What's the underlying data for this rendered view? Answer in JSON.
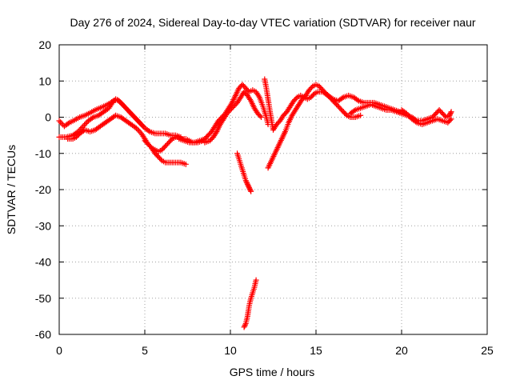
{
  "chart_data": {
    "type": "scatter",
    "title": "Day 276 of 2024, Sidereal Day-to-day VTEC variation (SDTVAR) for receiver naur",
    "xlabel": "GPS time / hours",
    "ylabel": "SDTVAR / TECUs",
    "xlim": [
      0,
      25
    ],
    "ylim": [
      -60,
      20
    ],
    "xticks": [
      0,
      5,
      10,
      15,
      20,
      25
    ],
    "yticks": [
      -60,
      -50,
      -40,
      -30,
      -20,
      -10,
      0,
      10,
      20
    ],
    "grid": true,
    "legend": "none",
    "marker": "+",
    "series_color": "#ff0000",
    "series": [
      {
        "name": "track-1",
        "points": [
          [
            0.0,
            -1.0
          ],
          [
            0.3,
            -2.5
          ],
          [
            0.6,
            -1.5
          ],
          [
            0.9,
            -0.8
          ],
          [
            1.2,
            0.0
          ],
          [
            1.5,
            0.5
          ],
          [
            1.8,
            1.2
          ],
          [
            2.1,
            2.0
          ],
          [
            2.4,
            2.6
          ],
          [
            2.7,
            3.2
          ],
          [
            3.0,
            4.0
          ],
          [
            3.2,
            4.6
          ],
          [
            3.4,
            4.8
          ],
          [
            3.6,
            4.0
          ],
          [
            3.8,
            3.0
          ],
          [
            4.0,
            2.0
          ],
          [
            4.2,
            1.0
          ],
          [
            4.4,
            0.0
          ],
          [
            4.6,
            -1.0
          ],
          [
            4.8,
            -2.0
          ],
          [
            5.0,
            -3.0
          ],
          [
            5.3,
            -4.0
          ],
          [
            5.6,
            -4.5
          ],
          [
            5.9,
            -4.5
          ],
          [
            6.2,
            -4.5
          ],
          [
            6.5,
            -5.0
          ],
          [
            6.8,
            -5.0
          ],
          [
            7.1,
            -5.5
          ]
        ]
      },
      {
        "name": "track-2",
        "points": [
          [
            0.0,
            -5.5
          ],
          [
            0.4,
            -5.5
          ],
          [
            0.8,
            -5.0
          ],
          [
            1.1,
            -4.0
          ],
          [
            1.4,
            -2.5
          ],
          [
            1.7,
            -1.0
          ],
          [
            2.0,
            0.0
          ],
          [
            2.3,
            0.5
          ],
          [
            2.6,
            1.5
          ],
          [
            2.9,
            2.5
          ],
          [
            3.1,
            4.0
          ],
          [
            3.3,
            5.0
          ],
          [
            3.5,
            4.5
          ],
          [
            3.7,
            3.5
          ],
          [
            3.9,
            2.5
          ],
          [
            4.1,
            1.5
          ],
          [
            4.3,
            0.5
          ],
          [
            4.5,
            -0.5
          ],
          [
            4.7,
            -1.5
          ],
          [
            4.9,
            -2.5
          ]
        ]
      },
      {
        "name": "track-3",
        "points": [
          [
            0.5,
            -6.0
          ],
          [
            0.8,
            -6.0
          ],
          [
            1.0,
            -5.5
          ],
          [
            1.2,
            -4.5
          ],
          [
            1.5,
            -3.5
          ],
          [
            1.8,
            -4.0
          ],
          [
            2.1,
            -3.5
          ],
          [
            2.4,
            -2.5
          ],
          [
            2.7,
            -1.5
          ],
          [
            3.0,
            -0.5
          ],
          [
            3.3,
            0.5
          ],
          [
            3.6,
            0.0
          ],
          [
            3.9,
            -1.0
          ],
          [
            4.2,
            -2.0
          ],
          [
            4.5,
            -3.0
          ],
          [
            4.8,
            -4.5
          ],
          [
            5.0,
            -6.0
          ],
          [
            5.2,
            -7.5
          ],
          [
            5.4,
            -8.5
          ],
          [
            5.6,
            -9.0
          ],
          [
            5.8,
            -9.5
          ],
          [
            6.0,
            -9.0
          ],
          [
            6.2,
            -8.0
          ],
          [
            6.4,
            -7.0
          ],
          [
            6.6,
            -6.0
          ],
          [
            6.8,
            -5.5
          ],
          [
            7.0,
            -5.5
          ],
          [
            7.2,
            -6.0
          ],
          [
            7.4,
            -6.0
          ],
          [
            7.6,
            -6.5
          ],
          [
            7.8,
            -7.0
          ],
          [
            8.1,
            -7.0
          ],
          [
            8.4,
            -6.5
          ]
        ]
      },
      {
        "name": "track-4",
        "points": [
          [
            5.0,
            -6.5
          ],
          [
            5.2,
            -7.5
          ],
          [
            5.4,
            -8.5
          ],
          [
            5.6,
            -10.0
          ],
          [
            5.8,
            -11.0
          ],
          [
            6.0,
            -12.0
          ],
          [
            6.2,
            -12.5
          ],
          [
            6.5,
            -12.5
          ],
          [
            6.8,
            -12.5
          ],
          [
            7.1,
            -12.5
          ],
          [
            7.4,
            -13.0
          ]
        ]
      },
      {
        "name": "track-5",
        "points": [
          [
            7.0,
            -6.0
          ],
          [
            7.3,
            -6.5
          ],
          [
            7.6,
            -7.0
          ],
          [
            7.9,
            -7.0
          ],
          [
            8.2,
            -6.5
          ],
          [
            8.5,
            -6.0
          ],
          [
            8.7,
            -5.0
          ],
          [
            8.9,
            -4.0
          ],
          [
            9.1,
            -2.5
          ],
          [
            9.3,
            -1.0
          ],
          [
            9.5,
            0.0
          ],
          [
            9.7,
            1.0
          ],
          [
            9.9,
            2.5
          ],
          [
            10.1,
            4.0
          ],
          [
            10.3,
            6.0
          ],
          [
            10.5,
            8.0
          ],
          [
            10.7,
            9.0
          ],
          [
            10.9,
            8.0
          ],
          [
            11.1,
            7.0
          ],
          [
            11.3,
            7.5
          ],
          [
            11.5,
            7.0
          ],
          [
            11.7,
            5.5
          ],
          [
            11.9,
            3.0
          ],
          [
            12.1,
            0.0
          ],
          [
            12.2,
            -2.0
          ]
        ]
      },
      {
        "name": "track-6",
        "points": [
          [
            8.5,
            -7.0
          ],
          [
            8.8,
            -6.5
          ],
          [
            9.0,
            -5.5
          ],
          [
            9.2,
            -4.0
          ],
          [
            9.4,
            -2.0
          ],
          [
            9.6,
            -0.5
          ],
          [
            9.8,
            1.0
          ],
          [
            10.0,
            2.0
          ],
          [
            10.2,
            3.0
          ],
          [
            10.4,
            4.0
          ],
          [
            10.6,
            5.5
          ],
          [
            10.8,
            7.0
          ],
          [
            11.0,
            6.0
          ],
          [
            11.2,
            4.5
          ],
          [
            11.4,
            2.5
          ],
          [
            11.6,
            1.0
          ],
          [
            11.8,
            0.0
          ]
        ]
      },
      {
        "name": "track-7",
        "points": [
          [
            10.4,
            -10.0
          ],
          [
            10.5,
            -11.5
          ],
          [
            10.6,
            -13.0
          ],
          [
            10.7,
            -14.5
          ],
          [
            10.8,
            -16.0
          ],
          [
            10.9,
            -17.5
          ],
          [
            11.0,
            -18.5
          ],
          [
            11.1,
            -19.5
          ],
          [
            11.2,
            -20.5
          ]
        ]
      },
      {
        "name": "track-8",
        "points": [
          [
            10.8,
            -58.0
          ],
          [
            10.9,
            -57.0
          ],
          [
            11.0,
            -55.0
          ],
          [
            11.1,
            -52.0
          ],
          [
            11.2,
            -50.0
          ],
          [
            11.3,
            -48.5
          ],
          [
            11.4,
            -47.0
          ],
          [
            11.5,
            -45.0
          ]
        ]
      },
      {
        "name": "track-9",
        "points": [
          [
            12.2,
            -14.0
          ],
          [
            12.4,
            -12.0
          ],
          [
            12.6,
            -10.0
          ],
          [
            12.8,
            -8.0
          ],
          [
            13.0,
            -6.0
          ],
          [
            13.2,
            -4.0
          ],
          [
            13.4,
            -1.5
          ],
          [
            13.6,
            0.5
          ],
          [
            13.8,
            2.0
          ],
          [
            14.0,
            3.5
          ],
          [
            14.2,
            5.0
          ],
          [
            14.4,
            6.0
          ],
          [
            14.6,
            7.5
          ],
          [
            14.8,
            8.5
          ],
          [
            15.0,
            9.0
          ],
          [
            15.2,
            8.5
          ],
          [
            15.4,
            7.5
          ],
          [
            15.6,
            6.5
          ],
          [
            15.8,
            5.5
          ],
          [
            16.0,
            4.5
          ],
          [
            16.2,
            3.5
          ],
          [
            16.4,
            2.5
          ],
          [
            16.6,
            1.5
          ],
          [
            16.8,
            0.5
          ],
          [
            17.0,
            0.0
          ],
          [
            17.3,
            0.0
          ],
          [
            17.6,
            0.5
          ]
        ]
      },
      {
        "name": "track-10",
        "points": [
          [
            12.0,
            10.5
          ],
          [
            12.1,
            8.0
          ],
          [
            12.2,
            5.0
          ],
          [
            12.3,
            2.0
          ],
          [
            12.4,
            -1.0
          ],
          [
            12.5,
            -3.5
          ],
          [
            12.7,
            -2.0
          ],
          [
            12.9,
            -1.0
          ],
          [
            13.1,
            0.5
          ],
          [
            13.3,
            1.5
          ],
          [
            13.5,
            3.0
          ],
          [
            13.7,
            4.5
          ],
          [
            13.9,
            5.5
          ],
          [
            14.1,
            6.0
          ],
          [
            14.3,
            5.5
          ],
          [
            14.5,
            5.0
          ],
          [
            14.7,
            5.5
          ],
          [
            14.9,
            6.5
          ],
          [
            15.1,
            7.0
          ],
          [
            15.4,
            7.0
          ],
          [
            15.7,
            6.0
          ],
          [
            16.0,
            5.0
          ],
          [
            16.3,
            4.5
          ],
          [
            16.6,
            5.5
          ],
          [
            16.9,
            6.0
          ],
          [
            17.2,
            5.5
          ],
          [
            17.5,
            4.5
          ],
          [
            17.8,
            4.0
          ],
          [
            18.1,
            4.0
          ],
          [
            18.4,
            4.0
          ],
          [
            18.7,
            3.5
          ],
          [
            19.0,
            3.0
          ],
          [
            19.3,
            2.5
          ],
          [
            19.6,
            2.0
          ],
          [
            19.9,
            1.5
          ]
        ]
      },
      {
        "name": "track-11",
        "points": [
          [
            17.0,
            1.0
          ],
          [
            17.3,
            2.0
          ],
          [
            17.6,
            2.5
          ],
          [
            17.9,
            3.0
          ],
          [
            18.2,
            3.5
          ],
          [
            18.5,
            3.0
          ],
          [
            18.8,
            2.5
          ],
          [
            19.1,
            2.0
          ],
          [
            19.4,
            2.0
          ],
          [
            19.7,
            1.5
          ],
          [
            20.0,
            1.0
          ],
          [
            20.3,
            0.5
          ],
          [
            20.6,
            0.0
          ],
          [
            20.9,
            -1.0
          ],
          [
            21.2,
            -1.0
          ],
          [
            21.5,
            -0.5
          ],
          [
            21.8,
            0.0
          ],
          [
            22.0,
            1.0
          ],
          [
            22.2,
            2.0
          ],
          [
            22.4,
            1.0
          ],
          [
            22.6,
            0.0
          ],
          [
            22.8,
            0.5
          ],
          [
            22.9,
            1.5
          ]
        ]
      },
      {
        "name": "track-12",
        "points": [
          [
            20.0,
            2.0
          ],
          [
            20.3,
            1.0
          ],
          [
            20.6,
            -0.5
          ],
          [
            20.9,
            -1.5
          ],
          [
            21.2,
            -2.0
          ],
          [
            21.5,
            -1.5
          ],
          [
            21.8,
            -1.0
          ],
          [
            22.1,
            -0.5
          ],
          [
            22.4,
            -1.0
          ],
          [
            22.7,
            -1.5
          ],
          [
            22.9,
            -0.5
          ]
        ]
      }
    ]
  }
}
